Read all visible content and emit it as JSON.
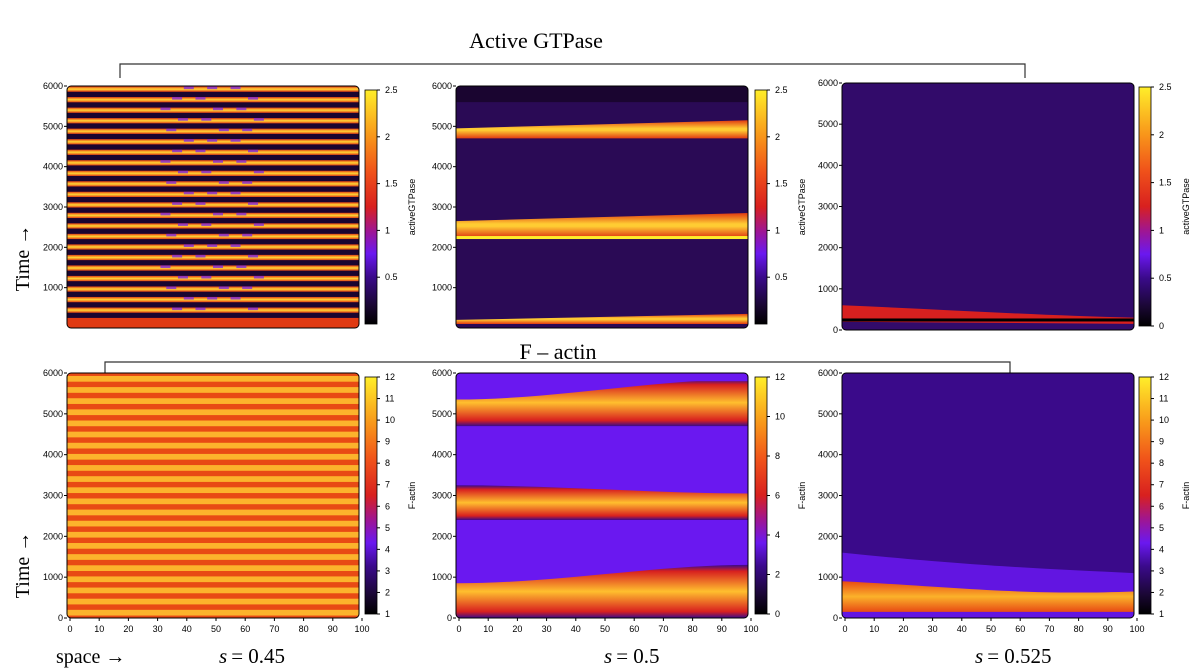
{
  "figure": {
    "row_titles": [
      "Active GTPase",
      "F – actin"
    ],
    "time_label": "Time →",
    "space_label": "space →",
    "s_prefix": "s",
    "s_values": [
      "= 0.45",
      "= 0.5",
      "= 0.525"
    ]
  },
  "chart_data": [
    {
      "type": "heatmap",
      "row": 0,
      "col": 0,
      "s": 0.45,
      "title": "Active GTPase",
      "xlabel": "space",
      "ylabel": "Time",
      "colorbar_label": "activeGTPase",
      "xlim": [
        0,
        100
      ],
      "ylim": [
        0,
        6000
      ],
      "yticks": [
        "1000",
        "2000",
        "3000",
        "4000",
        "5000",
        "6000"
      ],
      "xticks": [],
      "cbar_range": [
        0,
        2.5
      ],
      "cbar_ticks": [
        "0.5",
        "1",
        "1.5",
        "2",
        "2.5"
      ],
      "pattern": "many alternating high/low horizontal bands, values 0–2.5"
    },
    {
      "type": "heatmap",
      "row": 0,
      "col": 1,
      "s": 0.5,
      "title": "Active GTPase",
      "xlabel": "space",
      "ylabel": "Time",
      "colorbar_label": "activeGTPase",
      "xlim": [
        0,
        100
      ],
      "ylim": [
        0,
        6000
      ],
      "yticks": [
        "1000",
        "2000",
        "3000",
        "4000",
        "5000",
        "6000"
      ],
      "xticks": [],
      "cbar_range": [
        0,
        2.5
      ],
      "cbar_ticks": [
        "0.5",
        "1",
        "1.5",
        "2",
        "2.5"
      ],
      "pattern": "three high bands near t≈200, 2500, 4800; low background"
    },
    {
      "type": "heatmap",
      "row": 0,
      "col": 2,
      "s": 0.525,
      "title": "Active GTPase",
      "xlabel": "space",
      "ylabel": "Time",
      "colorbar_label": "activeGTPase",
      "xlim": [
        0,
        100
      ],
      "ylim": [
        0,
        6000
      ],
      "yticks": [
        "0",
        "1000",
        "2000",
        "3000",
        "4000",
        "5000",
        "6000"
      ],
      "xticks": [],
      "cbar_range": [
        0,
        2.5
      ],
      "cbar_ticks": [
        "0",
        "0.5",
        "1",
        "1.5",
        "2",
        "2.5"
      ],
      "pattern": "single transient band near t≈300, then uniform low"
    },
    {
      "type": "heatmap",
      "row": 1,
      "col": 0,
      "s": 0.45,
      "title": "F – actin",
      "xlabel": "space",
      "ylabel": "Time",
      "colorbar_label": "F-actin",
      "xlim": [
        0,
        100
      ],
      "ylim": [
        0,
        6000
      ],
      "yticks": [
        "0",
        "1000",
        "2000",
        "3000",
        "4000",
        "5000",
        "6000"
      ],
      "xticks": [
        "0",
        "10",
        "20",
        "30",
        "40",
        "50",
        "60",
        "70",
        "80",
        "90",
        "100"
      ],
      "cbar_range": [
        1,
        12
      ],
      "cbar_ticks": [
        "1",
        "2",
        "3",
        "4",
        "5",
        "6",
        "7",
        "8",
        "9",
        "10",
        "11",
        "12"
      ],
      "pattern": "many alternating orange/yellow bands"
    },
    {
      "type": "heatmap",
      "row": 1,
      "col": 1,
      "s": 0.5,
      "title": "F – actin",
      "xlabel": "space",
      "ylabel": "Time",
      "colorbar_label": "F-actin",
      "xlim": [
        0,
        100
      ],
      "ylim": [
        0,
        6000
      ],
      "yticks": [
        "0",
        "1000",
        "2000",
        "3000",
        "4000",
        "5000",
        "6000"
      ],
      "xticks": [
        "0",
        "10",
        "20",
        "30",
        "40",
        "50",
        "60",
        "70",
        "80",
        "90",
        "100"
      ],
      "cbar_range": [
        0,
        12
      ],
      "cbar_ticks": [
        "0",
        "2",
        "4",
        "6",
        "8",
        "10",
        "12"
      ],
      "pattern": "three high bands near t≈600, 2900, 5100 on purple background"
    },
    {
      "type": "heatmap",
      "row": 1,
      "col": 2,
      "s": 0.525,
      "title": "F – actin",
      "xlabel": "space",
      "ylabel": "Time",
      "colorbar_label": "F-actin",
      "xlim": [
        0,
        100
      ],
      "ylim": [
        0,
        6000
      ],
      "yticks": [
        "0",
        "1000",
        "2000",
        "3000",
        "4000",
        "5000",
        "6000"
      ],
      "xticks": [
        "0",
        "10",
        "20",
        "30",
        "40",
        "50",
        "60",
        "70",
        "80",
        "90",
        "100"
      ],
      "cbar_range": [
        1,
        12
      ],
      "cbar_ticks": [
        "1",
        "2",
        "3",
        "4",
        "5",
        "6",
        "7",
        "8",
        "9",
        "10",
        "11",
        "12"
      ],
      "pattern": "single decaying band near t≈600, then uniform purple"
    }
  ]
}
